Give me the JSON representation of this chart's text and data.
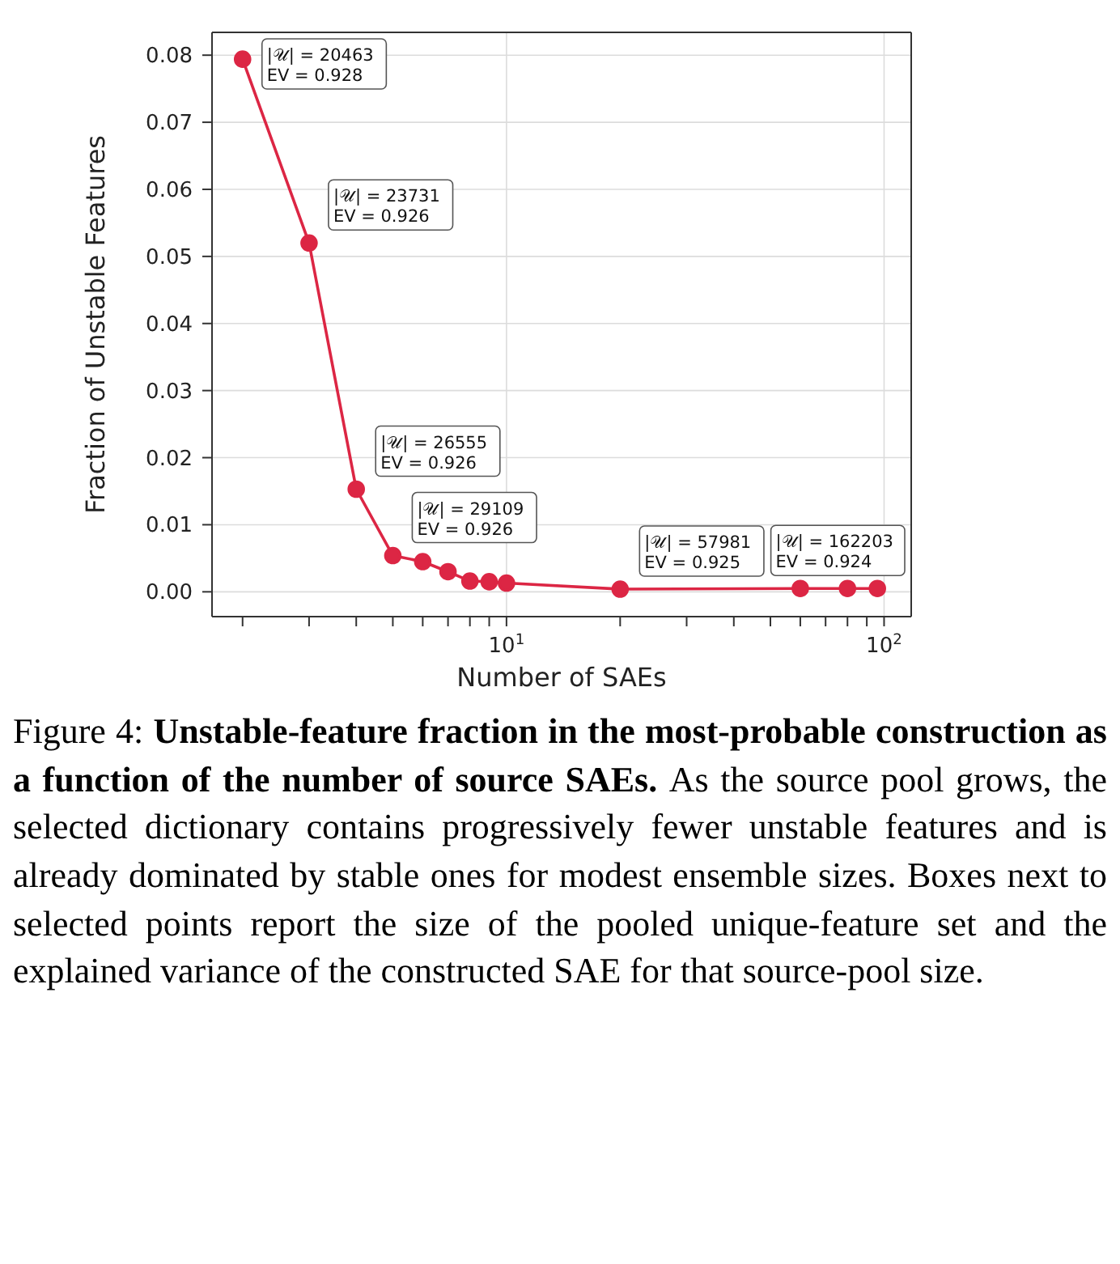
{
  "chart_data": {
    "type": "line",
    "xlabel": "Number of SAEs",
    "ylabel": "Fraction of Unstable Features",
    "log": "x",
    "x": [
      2,
      3,
      4,
      5,
      6,
      7,
      8,
      9,
      10,
      20,
      60,
      80,
      96
    ],
    "series": [
      {
        "color": "#dc2644",
        "values": [
          0.0794,
          0.052,
          0.0153,
          0.0054,
          0.0045,
          0.003,
          0.0016,
          0.0015,
          0.0013,
          0.0004,
          0.0005,
          0.0005,
          0.0005
        ]
      }
    ],
    "marker": "circle",
    "line_style": "solid",
    "grid": true,
    "xlim": [
      1.66,
      118
    ],
    "ylim": [
      -0.0037,
      0.0834
    ],
    "xticks": [
      {
        "value": 2,
        "label": null
      },
      {
        "value": 3,
        "label": null
      },
      {
        "value": 4,
        "label": null
      },
      {
        "value": 5,
        "label": null
      },
      {
        "value": 6,
        "label": null
      },
      {
        "value": 7,
        "label": null
      },
      {
        "value": 8,
        "label": null
      },
      {
        "value": 9,
        "label": null
      },
      {
        "value": 10,
        "label": "10$^{1}$"
      },
      {
        "value": 20,
        "label": null
      },
      {
        "value": 30,
        "label": null
      },
      {
        "value": 40,
        "label": null
      },
      {
        "value": 50,
        "label": null
      },
      {
        "value": 60,
        "label": null
      },
      {
        "value": 70,
        "label": null
      },
      {
        "value": 80,
        "label": null
      },
      {
        "value": 90,
        "label": null
      },
      {
        "value": 100,
        "label": "10$^{2}$"
      }
    ],
    "yticks": [
      {
        "value": 0,
        "label": "0.00"
      },
      {
        "value": 0.01,
        "label": "0.01"
      },
      {
        "value": 0.02,
        "label": "0.02"
      },
      {
        "value": 0.03,
        "label": "0.03"
      },
      {
        "value": 0.04,
        "label": "0.04"
      },
      {
        "value": 0.05,
        "label": "0.05"
      },
      {
        "value": 0.06,
        "label": "0.06"
      },
      {
        "value": 0.07,
        "label": "0.07"
      },
      {
        "value": 0.08,
        "label": "0.08"
      }
    ],
    "annotations": [
      {
        "text": "|𝒰| = 20463\nEV = 0.928",
        "x": 2,
        "y": 0.0794
      },
      {
        "text": "|𝒰| = 23731\nEV = 0.926",
        "x": 3,
        "y": 0.052
      },
      {
        "text": "|𝒰| = 26555\nEV = 0.926",
        "x": 4,
        "y": 0.0153
      },
      {
        "text": "|𝒰| = 29109\nEV = 0.926",
        "x": 5,
        "y": 0.0054
      },
      {
        "text": "|𝒰| = 57981\nEV = 0.925",
        "x": 20,
        "y": 0.0004
      },
      {
        "text": "|𝒰| = 162203\nEV = 0.924",
        "x": 60,
        "y": 0.0005
      },
      "Figure 4:",
      "Unstable-feature fraction in the most-probable construction as a function of the number of source SAEs.",
      "As the source pool grows, the selected dictionary contains progressively fewer unstable features and is already dominated by stable ones for modest ensemble sizes. Boxes next to selected points report the size of the pooled unique-feature set and the explained variance of the constructed SAE for that source-pool size."
    ]
  }
}
